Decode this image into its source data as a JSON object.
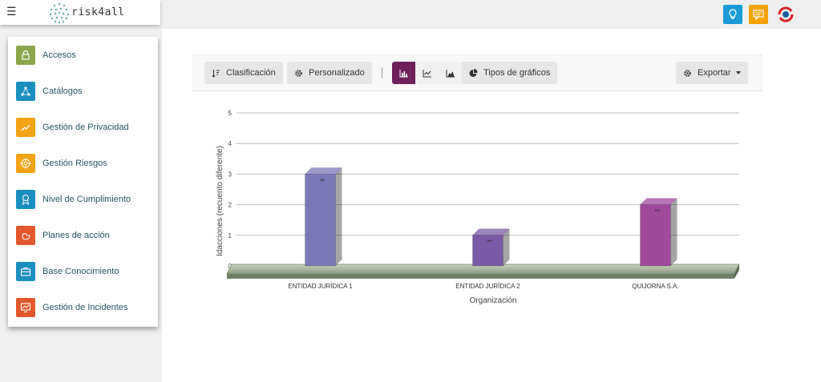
{
  "header": {
    "menu_icon": "☰",
    "logo_text": "risk4all",
    "icons": [
      "lightbulb-icon",
      "message-icon",
      "sync-icon"
    ]
  },
  "sidebar": {
    "items": [
      {
        "label": "Accesos",
        "icon": "lock-icon",
        "color": "#8aa54b"
      },
      {
        "label": "Catálogos",
        "icon": "network-icon",
        "color": "#1a8fbf"
      },
      {
        "label": "Gestión de Privacidad",
        "icon": "trend-icon",
        "color": "#f2a316"
      },
      {
        "label": "Gestión Riesgos",
        "icon": "target-icon",
        "color": "#f2a316"
      },
      {
        "label": "Nivel de Cumplimiento",
        "icon": "award-icon",
        "color": "#1a8fbf"
      },
      {
        "label": "Planes de acción",
        "icon": "hand-icon",
        "color": "#e2572b"
      },
      {
        "label": "Base Conocimiento",
        "icon": "briefcase-icon",
        "color": "#1a8fbf"
      },
      {
        "label": "Gestión de Incidentes",
        "icon": "monitor-chart-icon",
        "color": "#e2572b"
      }
    ]
  },
  "toolbar": {
    "clasificacion_label": "Clasificación",
    "personalizado_label": "Personalizado",
    "tipos_label": "Tipos de gráficos",
    "exportar_label": "Exportar",
    "active_chart_type": "bar",
    "active_color": "#6f1f5a"
  },
  "chart_data": {
    "type": "bar",
    "categories": [
      "ENTIDAD JURÍDICA 1",
      "ENTIDAD JURÍDICA 2",
      "QUIJORNA S.A."
    ],
    "values": [
      3,
      1,
      2
    ],
    "xlabel": "Organización",
    "ylabel": "Idacciones (recuento diferente)",
    "ylim": [
      0,
      5
    ],
    "yticks": [
      0,
      1,
      2,
      3,
      4,
      5
    ],
    "grid": true,
    "bar_colors": [
      "#7b78b8",
      "#7a5aa6",
      "#a04a9c"
    ]
  }
}
